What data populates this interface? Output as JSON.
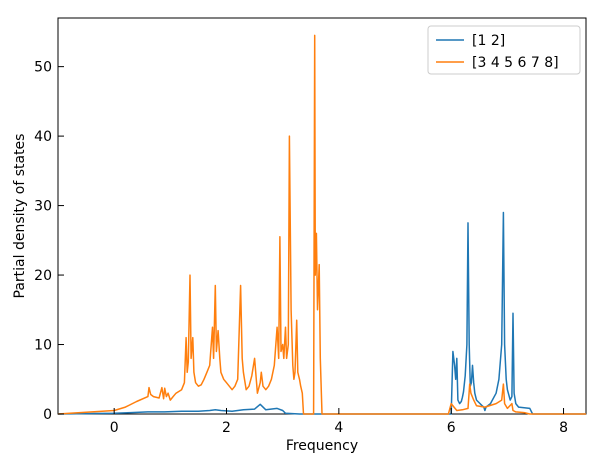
{
  "chart_data": {
    "type": "line",
    "title": "",
    "xlabel": "Frequency",
    "ylabel": "Partial density of states",
    "xlim": [
      -1.0,
      8.4
    ],
    "ylim": [
      0,
      57
    ],
    "xticks": [
      0,
      2,
      4,
      6,
      8
    ],
    "xtick_labels": [
      "0",
      "2",
      "4",
      "6",
      "8"
    ],
    "yticks": [
      0,
      10,
      20,
      30,
      40,
      50
    ],
    "ytick_labels": [
      "0",
      "10",
      "20",
      "30",
      "40",
      "50"
    ],
    "legend_position": "top-right",
    "series": [
      {
        "name": "[1 2]",
        "color": "#1f77b4",
        "x": [
          -1.0,
          0.0,
          0.3,
          0.6,
          0.9,
          1.2,
          1.5,
          1.7,
          1.8,
          1.9,
          2.1,
          2.3,
          2.5,
          2.6,
          2.7,
          2.9,
          3.0,
          3.05,
          3.3,
          5.95,
          6.0,
          6.03,
          6.06,
          6.08,
          6.1,
          6.12,
          6.15,
          6.18,
          6.2,
          6.22,
          6.25,
          6.28,
          6.3,
          6.32,
          6.34,
          6.36,
          6.38,
          6.4,
          6.42,
          6.45,
          6.5,
          6.55,
          6.58,
          6.6,
          6.62,
          6.7,
          6.72,
          6.8,
          6.85,
          6.9,
          6.93,
          6.95,
          6.98,
          7.0,
          7.05,
          7.08,
          7.1,
          7.12,
          7.15,
          7.2,
          7.3,
          7.4,
          7.45,
          8.4
        ],
        "y": [
          0.0,
          0.1,
          0.2,
          0.3,
          0.3,
          0.4,
          0.4,
          0.5,
          0.6,
          0.5,
          0.4,
          0.6,
          0.7,
          1.4,
          0.6,
          0.8,
          0.5,
          0.1,
          0.0,
          0.0,
          0.0,
          9.0,
          7.0,
          5.0,
          8.0,
          2.0,
          1.5,
          1.8,
          2.4,
          3.2,
          5.5,
          10.0,
          27.5,
          10.0,
          4.0,
          4.5,
          7.0,
          4.5,
          3.0,
          2.0,
          1.6,
          1.2,
          1.0,
          0.5,
          1.0,
          1.5,
          1.8,
          3.0,
          5.0,
          10.0,
          29.0,
          10.0,
          5.0,
          3.5,
          2.0,
          2.5,
          14.5,
          3.0,
          1.5,
          1.0,
          0.9,
          0.8,
          0.0,
          0.0
        ]
      },
      {
        "name": "[3 4 5 6 7 8]",
        "color": "#ff7f0e",
        "x": [
          -1.0,
          0.0,
          0.2,
          0.4,
          0.6,
          0.62,
          0.65,
          0.7,
          0.8,
          0.85,
          0.88,
          0.9,
          0.93,
          0.96,
          1.0,
          1.05,
          1.1,
          1.2,
          1.25,
          1.28,
          1.3,
          1.32,
          1.35,
          1.37,
          1.4,
          1.42,
          1.45,
          1.5,
          1.55,
          1.6,
          1.65,
          1.7,
          1.75,
          1.77,
          1.8,
          1.82,
          1.85,
          1.88,
          1.9,
          1.95,
          2.0,
          2.05,
          2.1,
          2.15,
          2.2,
          2.25,
          2.28,
          2.3,
          2.32,
          2.35,
          2.4,
          2.45,
          2.5,
          2.55,
          2.6,
          2.62,
          2.65,
          2.7,
          2.75,
          2.8,
          2.85,
          2.9,
          2.93,
          2.95,
          2.97,
          3.0,
          3.02,
          3.05,
          3.07,
          3.1,
          3.12,
          3.15,
          3.18,
          3.2,
          3.22,
          3.25,
          3.27,
          3.3,
          3.32,
          3.35,
          3.37,
          3.55,
          3.57,
          3.58,
          3.6,
          3.62,
          3.65,
          3.67,
          3.7,
          3.72,
          5.95,
          6.0,
          6.05,
          6.1,
          6.2,
          6.3,
          6.33,
          6.35,
          6.4,
          6.45,
          6.6,
          6.8,
          6.9,
          6.93,
          6.95,
          7.0,
          7.08,
          7.1,
          7.15,
          7.3,
          7.4,
          8.4
        ],
        "y": [
          0.0,
          0.5,
          1.0,
          1.8,
          2.5,
          3.8,
          2.8,
          2.5,
          2.3,
          3.8,
          2.2,
          3.7,
          2.5,
          3.0,
          2.0,
          2.5,
          3.0,
          3.5,
          4.5,
          11.0,
          6.0,
          7.5,
          20.0,
          8.0,
          11.0,
          6.0,
          4.5,
          4.0,
          4.2,
          5.0,
          6.0,
          7.0,
          12.5,
          8.0,
          18.5,
          9.0,
          12.0,
          8.0,
          6.0,
          5.0,
          4.5,
          4.0,
          3.5,
          4.0,
          5.0,
          18.5,
          8.0,
          6.0,
          5.0,
          3.5,
          4.0,
          5.5,
          8.0,
          3.0,
          4.5,
          6.0,
          4.0,
          3.5,
          4.0,
          5.0,
          7.0,
          12.5,
          8.0,
          25.5,
          9.0,
          10.0,
          8.0,
          12.5,
          8.0,
          10.0,
          40.0,
          15.0,
          7.0,
          5.0,
          6.0,
          13.5,
          6.0,
          5.0,
          4.0,
          3.0,
          0.0,
          0.0,
          54.5,
          20.0,
          26.0,
          15.0,
          21.5,
          8.0,
          0.0,
          0.0,
          0.0,
          1.5,
          1.0,
          0.5,
          0.6,
          0.8,
          4.3,
          3.0,
          2.0,
          1.2,
          1.0,
          1.5,
          2.0,
          4.3,
          1.5,
          0.8,
          1.5,
          0.5,
          0.3,
          0.2,
          0.0,
          0.0
        ]
      }
    ]
  }
}
